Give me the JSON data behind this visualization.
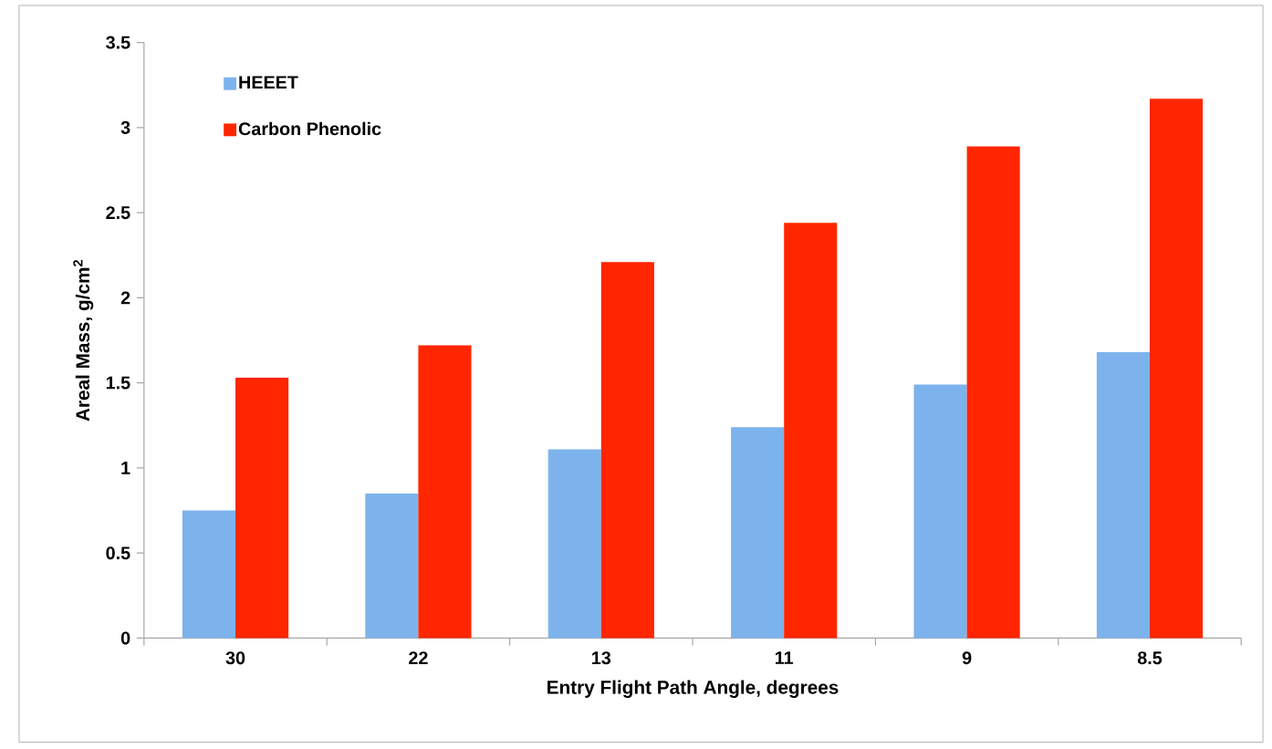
{
  "chart_data": {
    "type": "bar",
    "xlabel": "Entry Flight Path Angle, degrees",
    "ylabel": "Areal Mass, g/cm$^{2}$",
    "categories": [
      "30",
      "22",
      "13",
      "11",
      "9",
      "8.5"
    ],
    "series": [
      {
        "name": "HEEET",
        "color": "#7db3ec",
        "values": [
          0.75,
          0.85,
          1.11,
          1.24,
          1.49,
          1.68
        ]
      },
      {
        "name": "Carbon Phenolic",
        "color": "#ff2600",
        "values": [
          1.53,
          1.72,
          2.21,
          2.44,
          2.89,
          3.17
        ]
      }
    ],
    "ylim": [
      0,
      3.5
    ],
    "yticks": [
      0,
      0.5,
      1,
      1.5,
      2,
      2.5,
      3,
      3.5
    ],
    "grid": false,
    "legend": "top left"
  }
}
